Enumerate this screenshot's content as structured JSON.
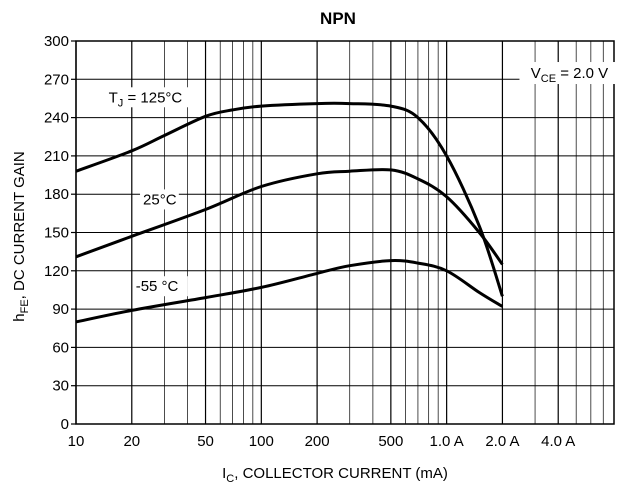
{
  "chart_data": {
    "type": "line",
    "title": "NPN",
    "xscale": "log",
    "xlim": [
      10,
      8000
    ],
    "ylim": [
      0,
      300
    ],
    "grid": true,
    "xlabel": {
      "main": "I",
      "sub": "C",
      "rest": ", COLLECTOR CURRENT (mA)"
    },
    "ylabel": {
      "main": "h",
      "sub": "FE",
      "rest": ", DC CURRENT GAIN"
    },
    "x_ticks": [
      {
        "value": 10,
        "label": "10"
      },
      {
        "value": 20,
        "label": "20"
      },
      {
        "value": 50,
        "label": "50"
      },
      {
        "value": 100,
        "label": "100"
      },
      {
        "value": 200,
        "label": "200"
      },
      {
        "value": 500,
        "label": "500"
      },
      {
        "value": 1000,
        "label": "1.0 A"
      },
      {
        "value": 2000,
        "label": "2.0 A"
      },
      {
        "value": 4000,
        "label": "4.0 A"
      }
    ],
    "y_ticks": [
      {
        "value": 0,
        "label": "0"
      },
      {
        "value": 30,
        "label": "30"
      },
      {
        "value": 60,
        "label": "60"
      },
      {
        "value": 90,
        "label": "90"
      },
      {
        "value": 120,
        "label": "120"
      },
      {
        "value": 150,
        "label": "150"
      },
      {
        "value": 180,
        "label": "180"
      },
      {
        "value": 210,
        "label": "210"
      },
      {
        "value": 240,
        "label": "240"
      },
      {
        "value": 270,
        "label": "270"
      },
      {
        "value": 300,
        "label": "300"
      }
    ],
    "series": [
      {
        "label_main": "T",
        "label_sub": "J",
        "label_rest": " = 125°C",
        "label_x": 15,
        "label_y": 252,
        "x": [
          10,
          20,
          30,
          50,
          70,
          100,
          200,
          300,
          500,
          700,
          1000,
          1500,
          2000
        ],
        "y": [
          198,
          214,
          226,
          241,
          246,
          249,
          251,
          251,
          249,
          240,
          210,
          155,
          100
        ]
      },
      {
        "label_main": "25°C",
        "label_sub": "",
        "label_rest": "",
        "label_x": 23,
        "label_y": 172,
        "x": [
          10,
          20,
          50,
          100,
          200,
          300,
          500,
          700,
          1000,
          1500,
          2000
        ],
        "y": [
          131,
          147,
          168,
          186,
          196,
          198,
          199,
          192,
          178,
          150,
          125
        ]
      },
      {
        "label_main": "-55 °C",
        "label_sub": "",
        "label_rest": "",
        "label_x": 21,
        "label_y": 104,
        "x": [
          10,
          20,
          50,
          100,
          200,
          300,
          500,
          700,
          1000,
          1500,
          2000
        ],
        "y": [
          80,
          89,
          99,
          107,
          118,
          124,
          128,
          126,
          120,
          103,
          92
        ]
      }
    ],
    "annotation": {
      "main": "V",
      "sub": "CE",
      "rest": " = 2.0 V"
    }
  }
}
